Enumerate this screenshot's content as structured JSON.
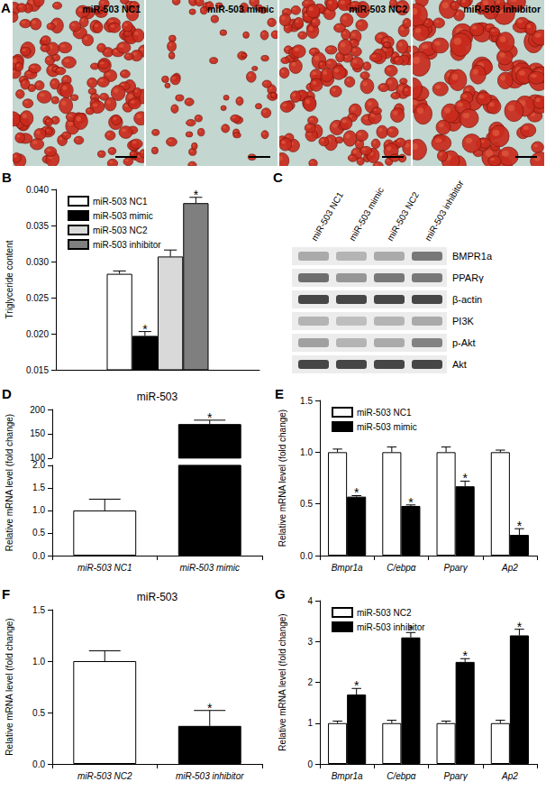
{
  "panel_a": {
    "panel_label": "A",
    "images": [
      {
        "label": "miR-503 NC1"
      },
      {
        "label": "miR-503 mimic"
      },
      {
        "label": "miR-503 NC2"
      },
      {
        "label": "miR-503 inhibitor"
      }
    ]
  },
  "panel_c": {
    "panel_label": "C",
    "columns": [
      "miR-503 NC1",
      "miR-503 mimic",
      "miR-503 NC2",
      "miR-503 inhibitor"
    ],
    "rows": [
      {
        "label": "BMPR1a",
        "band_intensity": [
          0.35,
          0.3,
          0.35,
          0.6
        ]
      },
      {
        "label": "PPARγ",
        "band_intensity": [
          0.65,
          0.45,
          0.6,
          0.6
        ]
      },
      {
        "label": "β-actin",
        "band_intensity": [
          0.85,
          0.85,
          0.85,
          0.85
        ]
      },
      {
        "label": "PI3K",
        "band_intensity": [
          0.3,
          0.25,
          0.3,
          0.35
        ]
      },
      {
        "label": "p-Akt",
        "band_intensity": [
          0.4,
          0.3,
          0.35,
          0.55
        ]
      },
      {
        "label": "Akt",
        "band_intensity": [
          0.85,
          0.85,
          0.85,
          0.85
        ]
      }
    ]
  },
  "chart_data": [
    {
      "panel_label": "B",
      "type": "bar",
      "y_label": "Triglyceride content",
      "categories": [
        null
      ],
      "series": [
        {
          "name": "miR-503 NC1",
          "color": "#ffffff",
          "values": [
            0.0283
          ],
          "errors": [
            0.0004
          ],
          "annotations": [
            null
          ]
        },
        {
          "name": "miR-503 mimic",
          "color": "#000000",
          "values": [
            0.0197
          ],
          "errors": [
            0.0006
          ],
          "annotations": [
            "*"
          ]
        },
        {
          "name": "miR-503 NC2",
          "color": "#d9d9d9",
          "values": [
            0.0307
          ],
          "errors": [
            0.0009
          ],
          "annotations": [
            null
          ]
        },
        {
          "name": "miR-503 inhibitor",
          "color": "#7f7f7f",
          "values": [
            0.0381
          ],
          "errors": [
            0.0008
          ],
          "annotations": [
            "*"
          ]
        }
      ],
      "ylim": [
        0.015,
        0.04
      ],
      "yticks": [
        0.015,
        {
          "value": 0.02,
          "label": "0.020"
        },
        0.025,
        {
          "value": 0.03,
          "label": "0.030"
        },
        0.035,
        {
          "value": 0.04,
          "label": "0.040"
        }
      ],
      "legend": "upper left",
      "grid": false
    },
    {
      "panel_label": "D",
      "type": "bar",
      "title": "miR-503",
      "y_label": "Relative mRNA level (fold change)",
      "categories": [
        "miR-503 NC1",
        "miR-503 mimic"
      ],
      "values": [
        1.0,
        170
      ],
      "colors": [
        "#ffffff",
        "#000000"
      ],
      "errors": [
        0.25,
        8
      ],
      "annotations": [
        null,
        "*"
      ],
      "ylim": [
        0,
        200
      ],
      "axis_break": [
        2,
        100
      ],
      "yticks": [
        {
          "value": 0,
          "label": "0.0"
        },
        0.5,
        {
          "value": 1,
          "label": "1.0"
        },
        1.5,
        {
          "value": 2,
          "label": "2.0"
        },
        100,
        150,
        200
      ],
      "grid": false
    },
    {
      "panel_label": "E",
      "type": "bar",
      "y_label": "Relative mRNA level (fold change)",
      "categories": [
        "Bmpr1a",
        "C/ebpα",
        "Pparγ",
        "Ap2"
      ],
      "series": [
        {
          "name": "miR-503 NC1",
          "color": "#ffffff",
          "values": [
            1.0,
            1.0,
            1.0,
            1.0
          ],
          "errors": [
            0.03,
            0.05,
            0.05,
            0.02
          ],
          "annotations": [
            null,
            null,
            null,
            null
          ]
        },
        {
          "name": "miR-503 mimic",
          "color": "#000000",
          "values": [
            0.57,
            0.48,
            0.67,
            0.2
          ],
          "errors": [
            0.01,
            0.01,
            0.05,
            0.06
          ],
          "annotations": [
            "*",
            "*",
            "*",
            "*"
          ]
        }
      ],
      "ylim": [
        0,
        1.5
      ],
      "yticks": [
        {
          "value": 0,
          "label": "0.0"
        },
        0.5,
        {
          "value": 1,
          "label": "1.0"
        },
        1.5
      ],
      "legend": "upper left",
      "grid": false
    },
    {
      "panel_label": "F",
      "type": "bar",
      "title": "miR-503",
      "y_label": "Relative mRNA level (fold change)",
      "categories": [
        "miR-503 NC2",
        "miR-503 inhibitor"
      ],
      "values": [
        1.0,
        0.37
      ],
      "colors": [
        "#ffffff",
        "#000000"
      ],
      "errors": [
        0.1,
        0.15
      ],
      "annotations": [
        null,
        "*"
      ],
      "ylim": [
        0,
        1.5
      ],
      "yticks": [
        {
          "value": 0,
          "label": "0.0"
        },
        0.5,
        {
          "value": 1,
          "label": "1.0"
        },
        1.5
      ],
      "grid": false
    },
    {
      "panel_label": "G",
      "type": "bar",
      "y_label": "Relative mRNA level (fold change)",
      "categories": [
        "Bmpr1a",
        "C/ebpα",
        "Pparγ",
        "Ap2"
      ],
      "series": [
        {
          "name": "miR-503 NC2",
          "color": "#ffffff",
          "values": [
            1.0,
            1.0,
            1.0,
            1.0
          ],
          "errors": [
            0.05,
            0.07,
            0.05,
            0.07
          ],
          "annotations": [
            null,
            null,
            null,
            null
          ]
        },
        {
          "name": "miR-503 inhibitor",
          "color": "#000000",
          "values": [
            1.7,
            3.1,
            2.5,
            3.15
          ],
          "errors": [
            0.15,
            0.12,
            0.08,
            0.15
          ],
          "annotations": [
            "*",
            "*",
            "*",
            "*"
          ]
        }
      ],
      "ylim": [
        0,
        4
      ],
      "yticks": [
        0,
        1,
        2,
        3,
        4
      ],
      "legend": "upper left",
      "grid": false
    }
  ]
}
